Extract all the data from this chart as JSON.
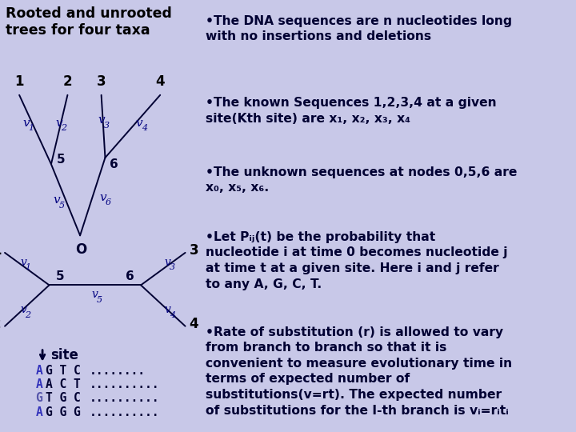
{
  "bg_color": "#c8c8e8",
  "title_color": "#000000",
  "node_color": "#000080",
  "line_color": "#000033",
  "taxa_color": "#000000",
  "seq_first_color_A": "#3333cc",
  "seq_first_color_G": "#6666aa",
  "seq_other_color": "#000033",
  "right_text_color": "#000033",
  "bullet1": "The DNA sequences are n nucleotides long\nwith no insertions and deletions",
  "bullet2": "The known Sequences 1,2,3,4 at a given\nsite(Kth site) are x₁, x₂, x₃, x₄",
  "bullet3": "The unknown sequences at nodes 0,5,6 are\nx₀, x₅, x₆.",
  "bullet4": "Let Pᵢⱼ(t) be the probability that\nnucleotide i at time 0 becomes nucleotide j\nat time t at a given site. Here i and j refer\nto any A, G, C, T.",
  "bullet5": "Rate of substitution (r) is allowed to vary\nfrom branch to branch so that it is\nconvenient to measure evolutionary time in\nterms of expected number of\nsubstitutions(v=rt). The expected number\nof substitutions for the I-th branch is vᵢ=rᵢtᵢ"
}
